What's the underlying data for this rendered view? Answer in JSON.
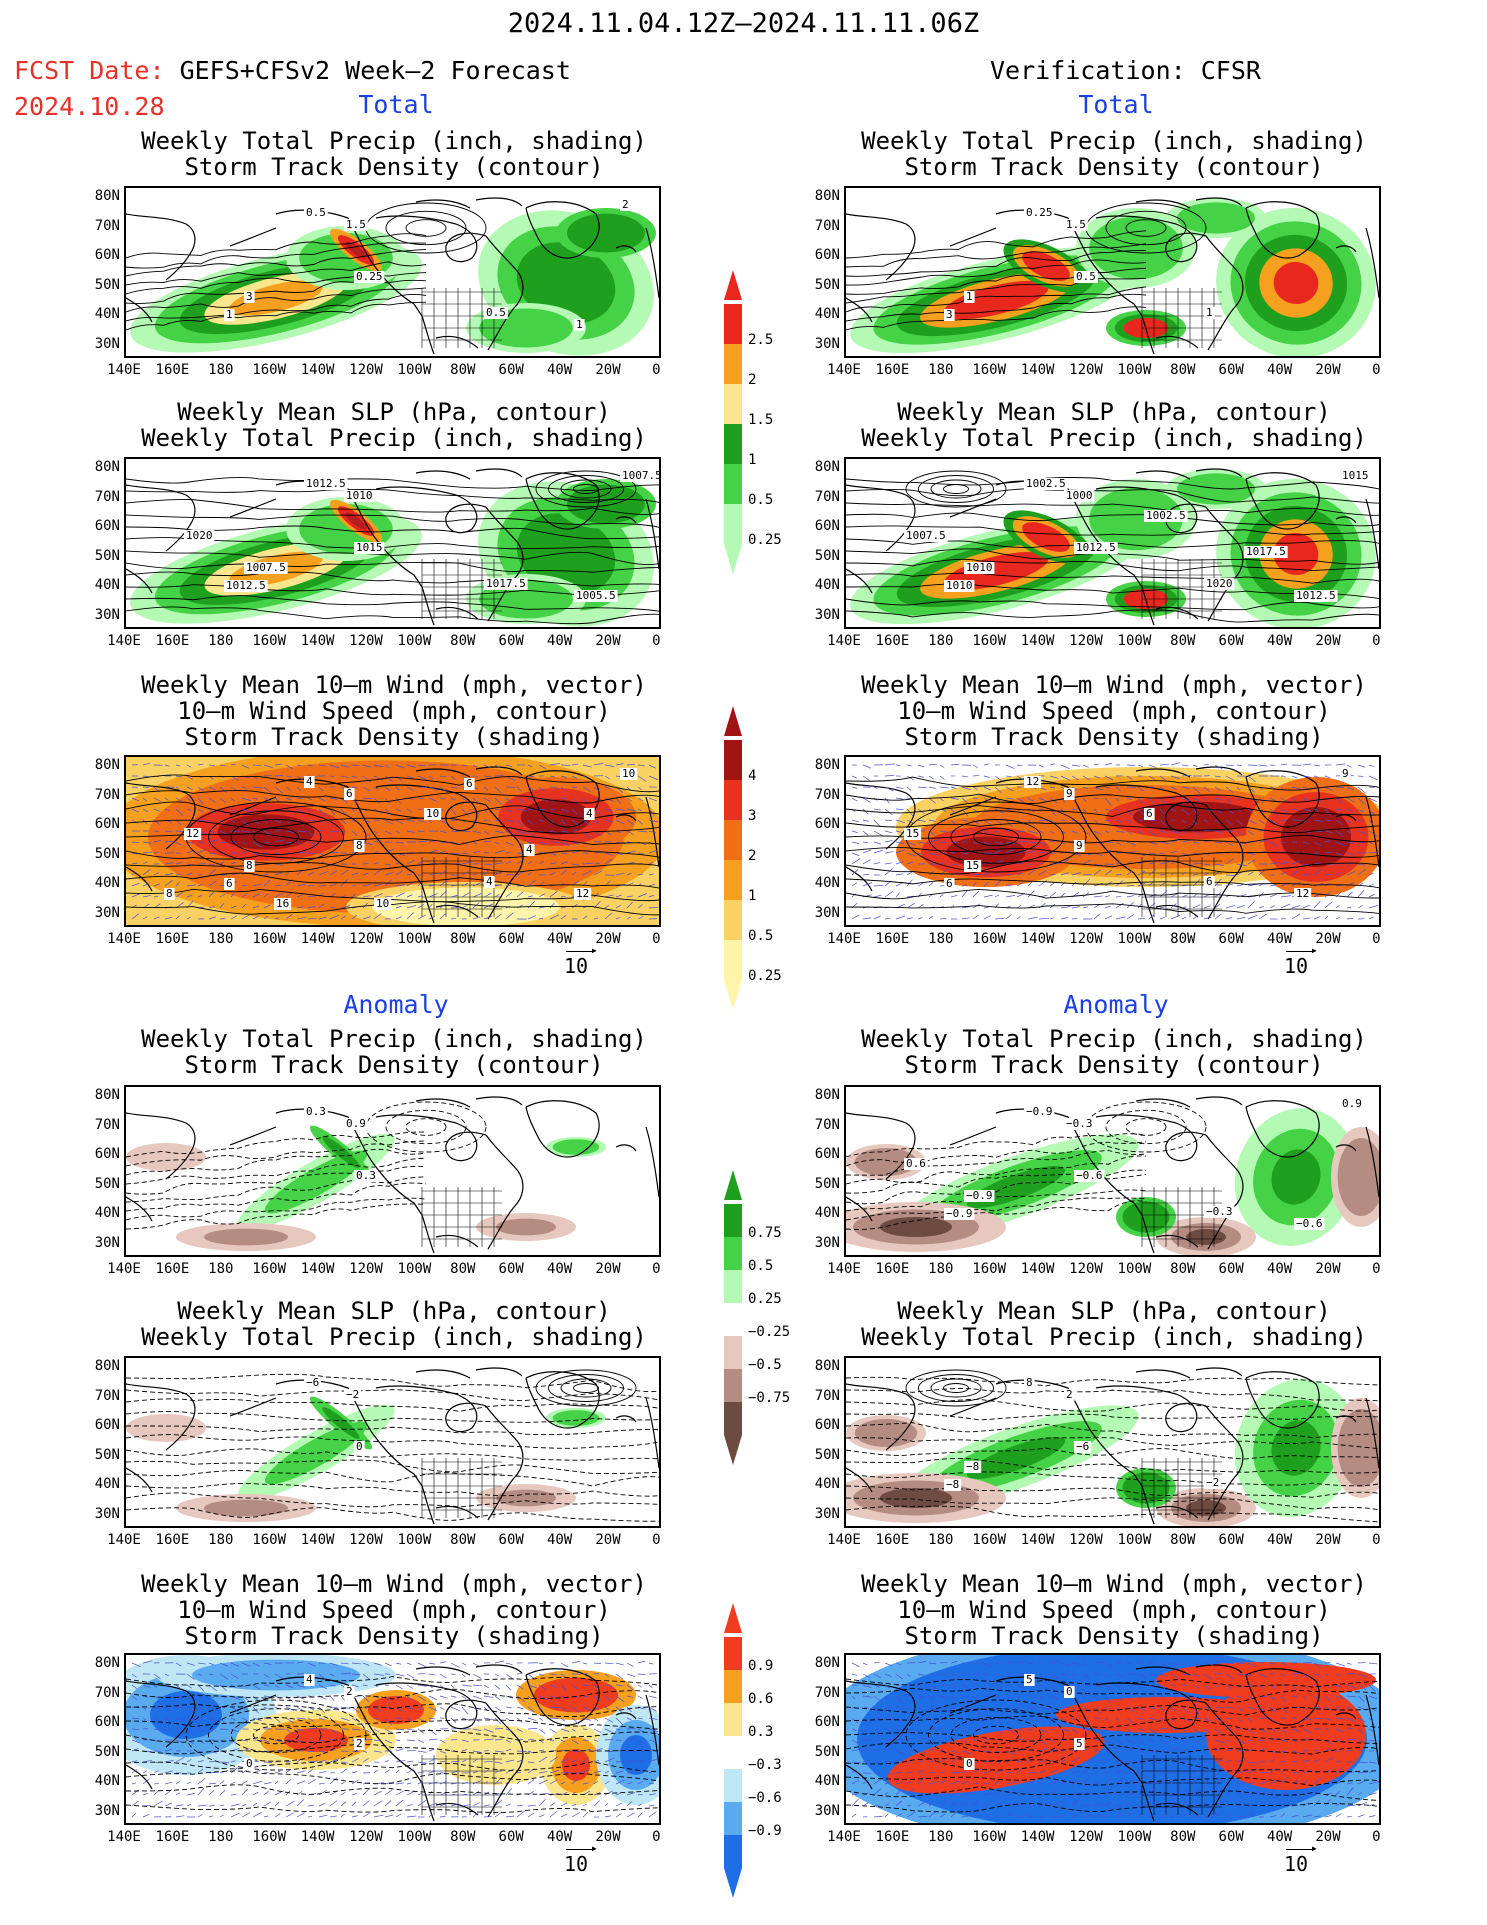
{
  "header": {
    "title": "2024.11.04.12Z–2024.11.11.06Z",
    "fcst_label": "FCST Date:",
    "fcst_model": "GEFS+CFSv2 Week–2 Forecast",
    "fcst_date": "2024.10.28",
    "verification": "Verification: CFSR"
  },
  "sections": {
    "total": "Total",
    "anomaly": "Anomaly"
  },
  "panel_titles": {
    "precip_storm": [
      "Weekly Total Precip (inch, shading)",
      "Storm Track Density (contour)"
    ],
    "slp_precip": [
      "Weekly Mean SLP (hPa, contour)",
      "Weekly Total Precip (inch, shading)"
    ],
    "wind_storm": [
      "Weekly Mean 10–m Wind (mph, vector)",
      "10–m Wind Speed (mph, contour)",
      "Storm Track Density (shading)"
    ]
  },
  "axes": {
    "lat_labels": [
      "80N",
      "70N",
      "60N",
      "50N",
      "40N",
      "30N"
    ],
    "lon_labels": [
      "140E",
      "160E",
      "180",
      "160W",
      "140W",
      "120W",
      "100W",
      "80W",
      "60W",
      "40W",
      "20W",
      "0"
    ]
  },
  "vector_reference": "10",
  "colorbars": {
    "precip_total": {
      "labels": [
        "2.5",
        "2",
        "1.5",
        "1",
        "0.5",
        "0.25"
      ],
      "colors": [
        "#e8281e",
        "#f5a01e",
        "#fae68c",
        "#1ea01e",
        "#46d246",
        "#b4fab4"
      ]
    },
    "storm_total": {
      "labels": [
        "4",
        "3",
        "2",
        "1",
        "0.5",
        "0.25"
      ],
      "colors": [
        "#a01414",
        "#e6321e",
        "#f06e14",
        "#f5a01e",
        "#fad264",
        "#fff5aa"
      ]
    },
    "precip_anom": {
      "labels": [
        "0.75",
        "0.5",
        "0.25",
        "−0.25",
        "−0.5",
        "−0.75"
      ],
      "colors": [
        "#1ea01e",
        "#46d246",
        "#b4fab4",
        "#ffffff",
        "#e6c8be",
        "#b48c82",
        "#6e4b41"
      ]
    },
    "storm_anom": {
      "labels": [
        "0.9",
        "0.6",
        "0.3",
        "−0.3",
        "−0.6",
        "−0.9"
      ],
      "colors": [
        "#f03c1e",
        "#f5a01e",
        "#fae68c",
        "#ffffff",
        "#bee6f5",
        "#5aaaf0",
        "#1e6ee6"
      ]
    },
    "contour_labels": {
      "fc_precip_total": [
        "0.5",
        "1.5",
        "0.25",
        "3",
        "1",
        "0.5",
        "1",
        "2"
      ],
      "ver_precip_total": [
        "0.25",
        "1.5",
        "0.5",
        "1",
        "3",
        "1"
      ],
      "fc_slp_total": [
        "1012.5",
        "1010",
        "1015",
        "1007.5",
        "1012.5",
        "1017.5",
        "1005.5",
        "1007.5",
        "1020"
      ],
      "ver_slp_total": [
        "1002.5",
        "1000",
        "1012.5",
        "1010",
        "1010",
        "1020",
        "1012.5",
        "1015",
        "1007.5",
        "1002.5",
        "1017.5"
      ],
      "fc_wind_total": [
        "4",
        "6",
        "8",
        "8",
        "6",
        "4",
        "12",
        "10",
        "12",
        "10",
        "4",
        "16",
        "10",
        "6",
        "4",
        "8"
      ],
      "ver_wind_total": [
        "12",
        "9",
        "9",
        "15",
        "6",
        "6",
        "12",
        "9",
        "15",
        "6"
      ],
      "fc_precip_anom": [
        "0.3",
        "0.9",
        "0.3"
      ],
      "ver_precip_anom": [
        "−0.9",
        "−0.3",
        "−0.6",
        "−0.9",
        "−0.9",
        "−0.3",
        "−0.6",
        "0.9",
        "0.6"
      ],
      "fc_slp_anom": [
        "−6",
        "−2",
        "0"
      ],
      "ver_slp_anom": [
        "8",
        "2",
        "−6",
        "−8",
        "−8",
        "−2"
      ],
      "fc_wind_anom": [
        "4",
        "2",
        "2",
        "0"
      ],
      "ver_wind_anom": [
        "5",
        "0",
        "5",
        "0"
      ]
    }
  }
}
